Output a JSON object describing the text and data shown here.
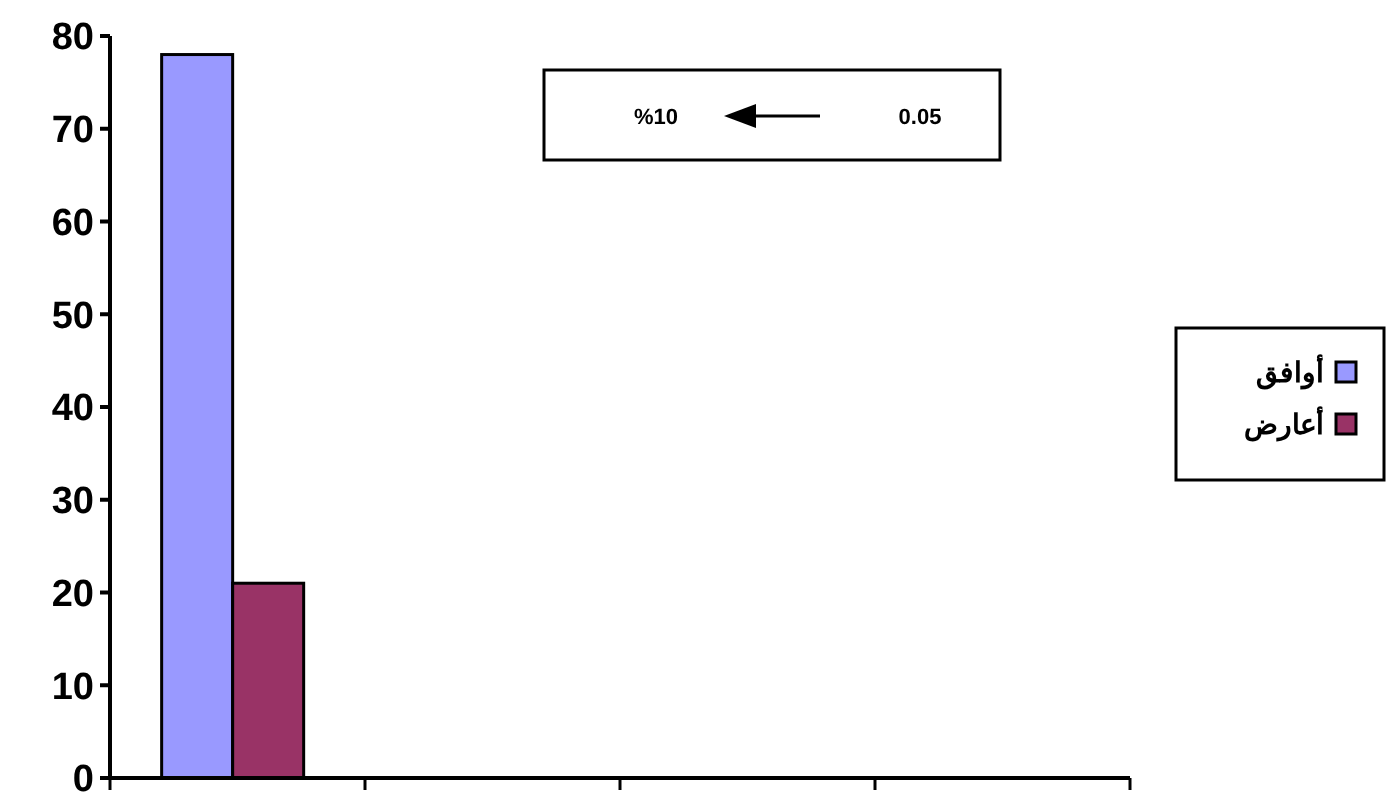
{
  "chart_data": {
    "type": "bar",
    "categories": [
      null,
      null,
      null,
      null
    ],
    "series": [
      {
        "name": "أوافق",
        "color": "#9999ff",
        "values": [
          78,
          null,
          null,
          null
        ]
      },
      {
        "name": "أعارض",
        "color": "#993366",
        "values": [
          21,
          null,
          null,
          null
        ]
      }
    ],
    "ylim": [
      0,
      80
    ],
    "yticks": [
      0,
      10,
      20,
      30,
      40,
      50,
      60,
      70,
      80
    ],
    "grid": false,
    "legend": "right",
    "annotations": [
      "0.05",
      "%10"
    ]
  }
}
